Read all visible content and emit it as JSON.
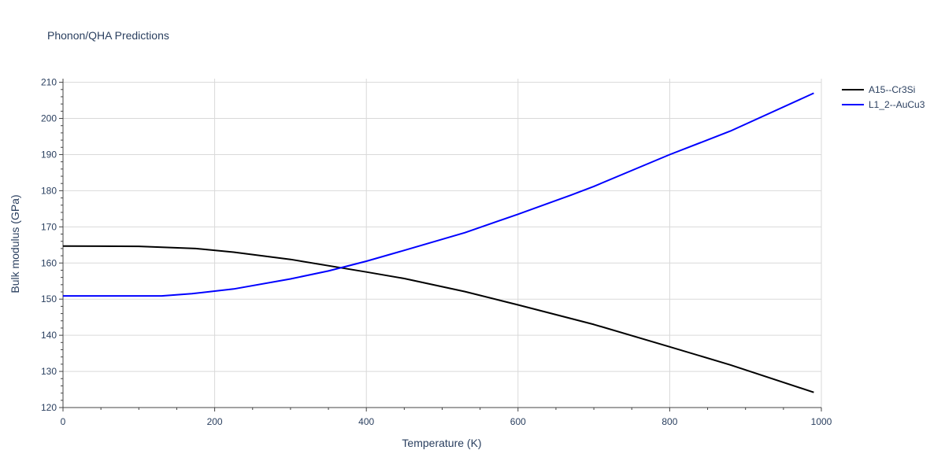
{
  "chart_data": {
    "type": "line",
    "title": "Phonon/QHA Predictions",
    "xlabel": "Temperature (K)",
    "ylabel": "Bulk modulus (GPa)",
    "xlim": [
      0,
      1000
    ],
    "ylim": [
      120,
      211
    ],
    "xticks": [
      0,
      200,
      400,
      600,
      800,
      1000
    ],
    "yticks": [
      120,
      130,
      140,
      150,
      160,
      170,
      180,
      190,
      200,
      210
    ],
    "grid": true,
    "legend_position": "top-right",
    "series": [
      {
        "name": "A15--Cr3Si",
        "color": "#000000",
        "x": [
          0,
          100,
          175,
          225,
          300,
          400,
          450,
          530,
          600,
          700,
          800,
          880,
          990
        ],
        "y": [
          164.7,
          164.6,
          164.0,
          163.0,
          161.0,
          157.5,
          155.7,
          152.1,
          148.4,
          143.0,
          136.8,
          131.8,
          124.2
        ]
      },
      {
        "name": "L1_2--AuCu3",
        "color": "#0000ff",
        "x": [
          0,
          100,
          130,
          170,
          225,
          300,
          350,
          400,
          450,
          530,
          600,
          670,
          700,
          800,
          880,
          990
        ],
        "y": [
          150.9,
          150.9,
          150.9,
          151.5,
          152.8,
          155.6,
          157.8,
          160.5,
          163.5,
          168.4,
          173.5,
          178.8,
          181.2,
          190.0,
          196.5,
          207.0
        ]
      }
    ]
  }
}
